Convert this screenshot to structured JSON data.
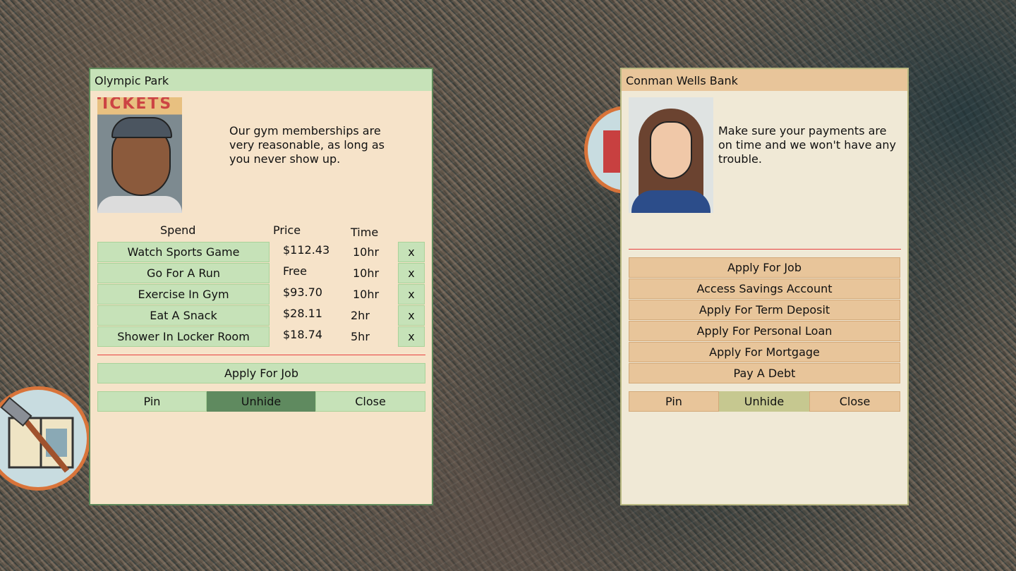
{
  "left_panel": {
    "title": "Olympic Park",
    "portrait_sign": "TICKETS",
    "description": "Our gym memberships are very reasonable, as long as you never show up.",
    "headers": {
      "spend": "Spend",
      "price": "Price",
      "time": "Time"
    },
    "rows": [
      {
        "label": "Watch Sports Game",
        "price": "$112.43",
        "time": "10hr",
        "remove": "x"
      },
      {
        "label": "Go For A Run",
        "price": "Free",
        "time": "10hr",
        "remove": "x"
      },
      {
        "label": "Exercise In Gym",
        "price": "$93.70",
        "time": "10hr",
        "remove": "x"
      },
      {
        "label": "Eat A Snack",
        "price": "$28.11",
        "time": "2hr",
        "remove": "x"
      },
      {
        "label": "Shower In Locker Room",
        "price": "$18.74",
        "time": "5hr",
        "remove": "x"
      }
    ],
    "apply_job": "Apply For Job",
    "pin": "Pin",
    "unhide": "Unhide",
    "close": "Close",
    "colors": {
      "title": "#c6e2b8",
      "body": "#f6e3c9",
      "active": "#5f8a5f"
    }
  },
  "right_panel": {
    "title": "Conman Wells Bank",
    "description": "Make sure your payments are on time and we won't have any trouble.",
    "actions": [
      "Apply For Job",
      "Access Savings Account",
      "Apply For Term Deposit",
      "Apply For Personal Loan",
      "Apply For Mortgage",
      "Pay A Debt"
    ],
    "pin": "Pin",
    "unhide": "Unhide",
    "close": "Close",
    "colors": {
      "title": "#e8c59a",
      "body": "#f0e9d6",
      "active": "#c6c890"
    }
  }
}
